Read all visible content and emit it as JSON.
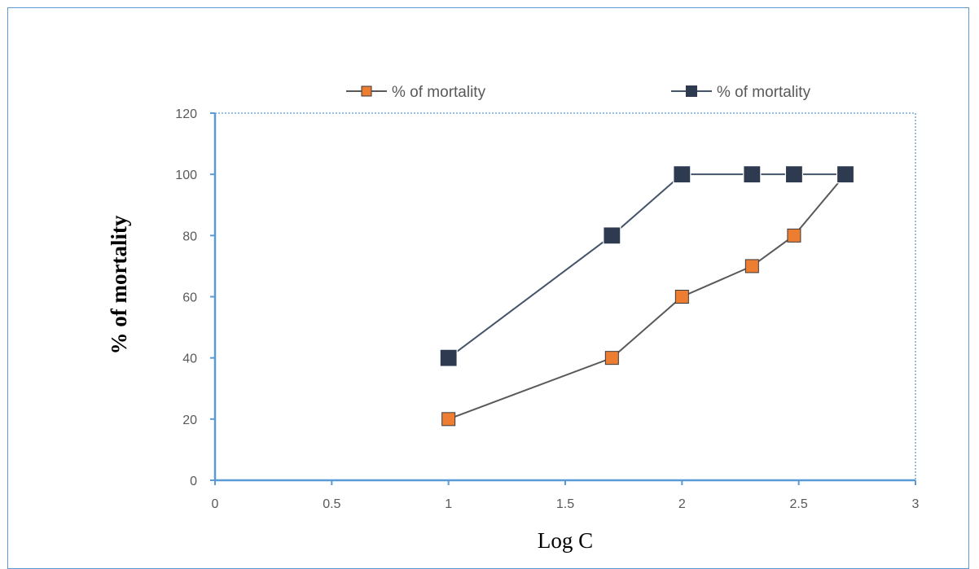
{
  "chart_data": {
    "type": "line",
    "title": "",
    "xlabel": "Log C",
    "ylabel": "% of mortality",
    "xlim": [
      0,
      3
    ],
    "ylim": [
      0,
      120
    ],
    "xticks": [
      "0",
      "0.5",
      "1",
      "1.5",
      "2",
      "2.5",
      "3"
    ],
    "yticks": [
      "0",
      "20",
      "40",
      "60",
      "80",
      "100",
      "120"
    ],
    "grid": false,
    "legend_position": "top",
    "series": [
      {
        "name": "% of mortality",
        "color": "#ed7d31",
        "line_color": "#595959",
        "marker": "square",
        "x": [
          1,
          1.7,
          2,
          2.3,
          2.48,
          2.7
        ],
        "y": [
          20,
          40,
          60,
          70,
          80,
          100
        ]
      },
      {
        "name": "% of mortality",
        "color": "#2d3a4f",
        "line_color": "#44546a",
        "marker": "square",
        "x": [
          1,
          1.7,
          2,
          2.3,
          2.48,
          2.7
        ],
        "y": [
          40,
          80,
          100,
          100,
          100,
          100
        ]
      }
    ]
  }
}
